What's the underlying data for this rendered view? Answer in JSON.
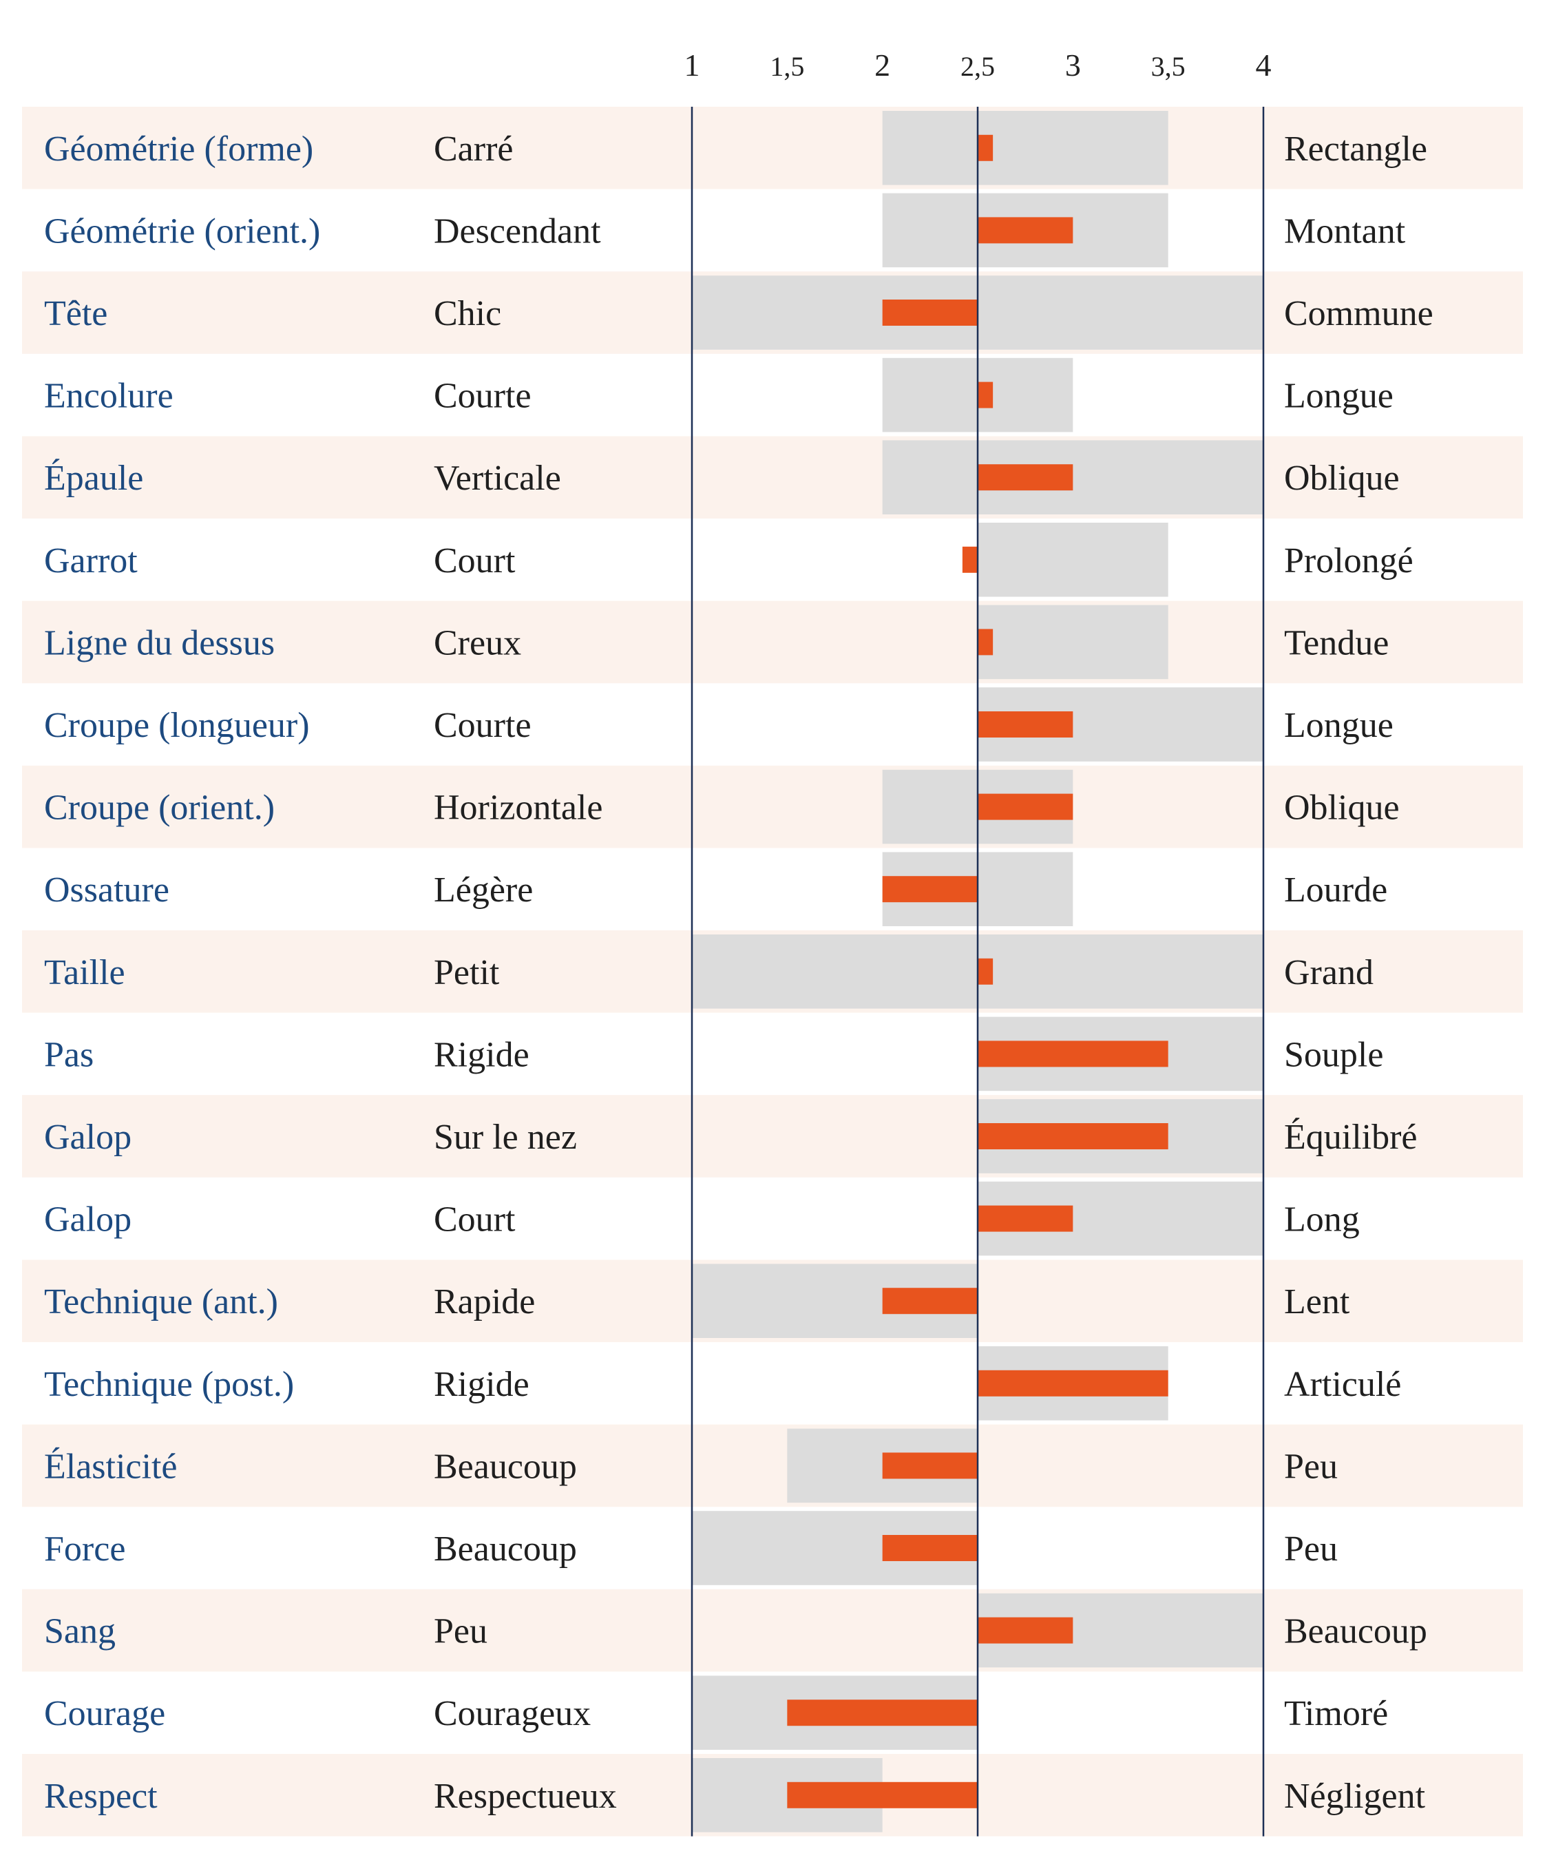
{
  "colors": {
    "stripe": "#fcf2ec",
    "range": "#dcdcdc",
    "bar": "#e8541e",
    "axis_line": "#1c2f55",
    "trait_text": "#1d4a80",
    "body_text": "#1f1f1f"
  },
  "chart_data": {
    "type": "bar",
    "orientation": "horizontal",
    "baseline": 2.5,
    "xlim": [
      1,
      4
    ],
    "x_ticks": [
      1,
      1.5,
      2,
      2.5,
      3,
      3.5,
      4
    ],
    "x_tick_labels": [
      "1",
      "1,5",
      "2",
      "2,5",
      "3",
      "3,5",
      "4"
    ],
    "grid": false,
    "rows": [
      {
        "trait": "Géométrie (forme)",
        "left": "Carré",
        "right": "Rectangle",
        "value": 2.58,
        "range": [
          2,
          3.5
        ]
      },
      {
        "trait": "Géométrie (orient.)",
        "left": "Descendant",
        "right": "Montant",
        "value": 3,
        "range": [
          2,
          3.5
        ]
      },
      {
        "trait": "Tête",
        "left": "Chic",
        "right": "Commune",
        "value": 2,
        "range": [
          1,
          4
        ]
      },
      {
        "trait": "Encolure",
        "left": "Courte",
        "right": "Longue",
        "value": 2.58,
        "range": [
          2,
          3
        ]
      },
      {
        "trait": "Épaule",
        "left": "Verticale",
        "right": "Oblique",
        "value": 3,
        "range": [
          2,
          4
        ]
      },
      {
        "trait": "Garrot",
        "left": "Court",
        "right": "Prolongé",
        "value": 2.42,
        "range": [
          2.5,
          3.5
        ]
      },
      {
        "trait": "Ligne du dessus",
        "left": "Creux",
        "right": "Tendue",
        "value": 2.58,
        "range": [
          2.5,
          3.5
        ]
      },
      {
        "trait": "Croupe (longueur)",
        "left": "Courte",
        "right": "Longue",
        "value": 3,
        "range": [
          2.5,
          4
        ]
      },
      {
        "trait": "Croupe (orient.)",
        "left": "Horizontale",
        "right": "Oblique",
        "value": 3,
        "range": [
          2,
          3
        ]
      },
      {
        "trait": "Ossature",
        "left": "Légère",
        "right": "Lourde",
        "value": 2,
        "range": [
          2,
          3
        ]
      },
      {
        "trait": "Taille",
        "left": "Petit",
        "right": "Grand",
        "value": 2.58,
        "range": [
          1,
          4
        ]
      },
      {
        "trait": "Pas",
        "left": "Rigide",
        "right": "Souple",
        "value": 3.5,
        "range": [
          2.5,
          4
        ]
      },
      {
        "trait": "Galop",
        "left": "Sur le nez",
        "right": "Équilibré",
        "value": 3.5,
        "range": [
          2.5,
          4
        ]
      },
      {
        "trait": "Galop",
        "left": "Court",
        "right": "Long",
        "value": 3,
        "range": [
          2.5,
          4
        ]
      },
      {
        "trait": "Technique (ant.)",
        "left": "Rapide",
        "right": "Lent",
        "value": 2,
        "range": [
          1,
          2.5
        ]
      },
      {
        "trait": "Technique (post.)",
        "left": "Rigide",
        "right": "Articulé",
        "value": 3.5,
        "range": [
          2.5,
          3.5
        ]
      },
      {
        "trait": "Élasticité",
        "left": "Beaucoup",
        "right": "Peu",
        "value": 2,
        "range": [
          1.5,
          2.5
        ]
      },
      {
        "trait": "Force",
        "left": "Beaucoup",
        "right": "Peu",
        "value": 2,
        "range": [
          1,
          2.5
        ]
      },
      {
        "trait": "Sang",
        "left": "Peu",
        "right": "Beaucoup",
        "value": 3,
        "range": [
          2.5,
          4
        ]
      },
      {
        "trait": "Courage",
        "left": "Courageux",
        "right": "Timoré",
        "value": 1.5,
        "range": [
          1,
          2.5
        ]
      },
      {
        "trait": "Respect",
        "left": "Respectueux",
        "right": "Négligent",
        "value": 1.5,
        "range": [
          1,
          2
        ]
      }
    ]
  }
}
